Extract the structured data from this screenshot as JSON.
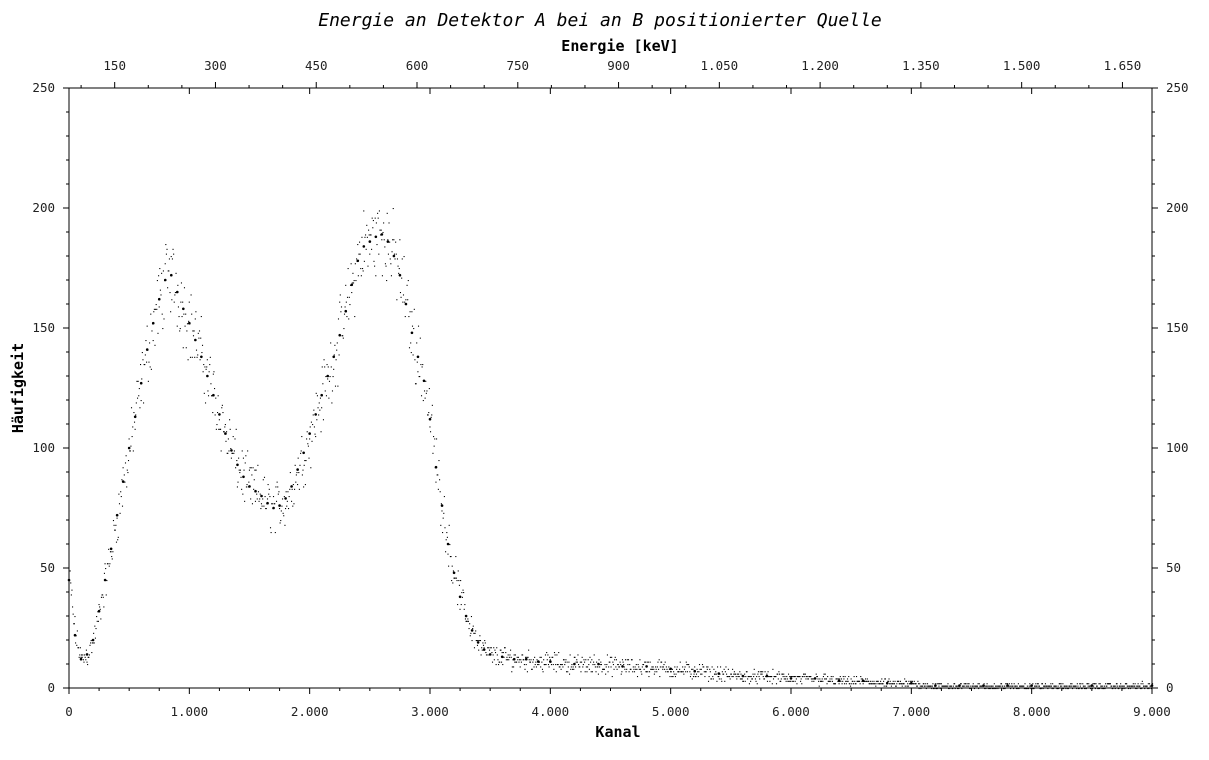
{
  "chart_data": {
    "type": "scatter",
    "title": "Energie an Detektor A bei an B positionierter Quelle",
    "xlabel": "Kanal",
    "ylabel": "Häufigkeit",
    "x2label": "Energie [keV]",
    "xlim": [
      0,
      9000
    ],
    "ylim": [
      0,
      250
    ],
    "x2lim": [
      82,
      1694
    ],
    "x_ticks": [
      {
        "value": 0,
        "label": "0"
      },
      {
        "value": 1000,
        "label": "1.000"
      },
      {
        "value": 2000,
        "label": "2.000"
      },
      {
        "value": 3000,
        "label": "3.000"
      },
      {
        "value": 4000,
        "label": "4.000"
      },
      {
        "value": 5000,
        "label": "5.000"
      },
      {
        "value": 6000,
        "label": "6.000"
      },
      {
        "value": 7000,
        "label": "7.000"
      },
      {
        "value": 8000,
        "label": "8.000"
      },
      {
        "value": 9000,
        "label": "9.000"
      }
    ],
    "x2_ticks": [
      {
        "value": 150,
        "label": "150"
      },
      {
        "value": 300,
        "label": "300"
      },
      {
        "value": 450,
        "label": "450"
      },
      {
        "value": 600,
        "label": "600"
      },
      {
        "value": 750,
        "label": "750"
      },
      {
        "value": 900,
        "label": "900"
      },
      {
        "value": 1050,
        "label": "1.050"
      },
      {
        "value": 1200,
        "label": "1.200"
      },
      {
        "value": 1350,
        "label": "1.350"
      },
      {
        "value": 1500,
        "label": "1.500"
      },
      {
        "value": 1650,
        "label": "1.650"
      }
    ],
    "y_ticks": [
      {
        "value": 0,
        "label": "0"
      },
      {
        "value": 50,
        "label": "50"
      },
      {
        "value": 100,
        "label": "100"
      },
      {
        "value": 150,
        "label": "150"
      },
      {
        "value": 200,
        "label": "200"
      },
      {
        "value": 250,
        "label": "250"
      }
    ],
    "grid": false,
    "legend": "none",
    "marker_color": "#000000",
    "series": [
      {
        "x": [
          0,
          50,
          100,
          150,
          200,
          250,
          300,
          350,
          400,
          450,
          500,
          550,
          600,
          650,
          700,
          750,
          800,
          850,
          900,
          950,
          1000,
          1050,
          1100,
          1150,
          1200,
          1250,
          1300,
          1350,
          1400,
          1450,
          1500,
          1550,
          1600,
          1650,
          1700,
          1750,
          1800,
          1850,
          1900,
          1950,
          2000,
          2050,
          2100,
          2150,
          2200,
          2250,
          2300,
          2350,
          2400,
          2450,
          2500,
          2550,
          2600,
          2650,
          2700,
          2750,
          2800,
          2850,
          2900,
          2950,
          3000,
          3050,
          3100,
          3150,
          3200,
          3250,
          3300,
          3350,
          3400,
          3450,
          3500,
          3600,
          3700,
          3800,
          3900,
          4000,
          4200,
          4400,
          4600,
          4800,
          5000,
          5200,
          5400,
          5600,
          5800,
          6000,
          6200,
          6400,
          6600,
          6800,
          7000,
          7200,
          7400,
          7600,
          7800,
          8000,
          8500,
          9000
        ],
        "y": [
          45,
          22,
          12,
          14,
          20,
          32,
          45,
          58,
          72,
          86,
          100,
          113,
          127,
          141,
          152,
          162,
          170,
          172,
          165,
          158,
          152,
          145,
          138,
          130,
          122,
          114,
          106,
          99,
          93,
          88,
          84,
          82,
          80,
          77,
          75,
          76,
          79,
          84,
          91,
          98,
          106,
          114,
          122,
          130,
          138,
          147,
          157,
          168,
          178,
          184,
          186,
          188,
          189,
          186,
          180,
          172,
          160,
          148,
          138,
          128,
          112,
          92,
          76,
          60,
          48,
          38,
          30,
          24,
          19,
          16,
          14,
          13,
          12,
          12,
          11,
          11,
          10,
          10,
          9,
          9,
          8,
          7,
          6,
          5,
          5,
          4,
          4,
          3,
          3,
          2,
          2,
          1,
          1,
          1,
          1,
          1,
          1,
          1
        ]
      }
    ]
  }
}
